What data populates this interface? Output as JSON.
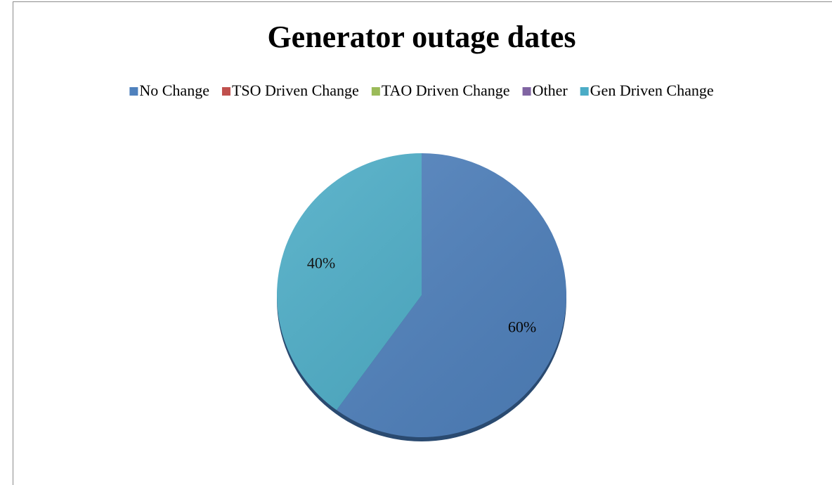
{
  "chart_data": {
    "type": "pie",
    "title": "Generator outage dates",
    "categories": [
      "No Change",
      "TSO Driven Change",
      "TAO Driven Change",
      "Other",
      "Gen Driven Change"
    ],
    "values": [
      60,
      0,
      0,
      0,
      40
    ],
    "value_labels": [
      "60%",
      null,
      null,
      null,
      "40%"
    ],
    "colors": [
      "#4f81bd",
      "#c0504d",
      "#9bbb59",
      "#8064a2",
      "#4bacc6"
    ],
    "legend": "top"
  }
}
